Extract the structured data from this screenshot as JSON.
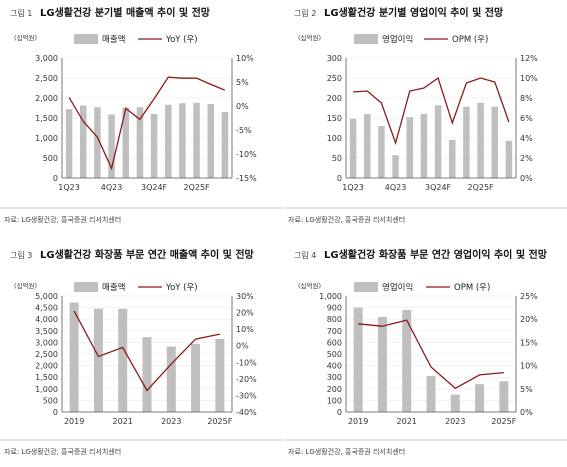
{
  "charts": [
    {
      "fig_no": "그림 1",
      "title": "LG생활건강 분기별 매출액 추이 및 전망",
      "unit": "(십억원)",
      "legend": {
        "bar": "매출액",
        "line": "YoY (우)"
      },
      "source": "자료: LG생활건강, 흥국증권 리서치센터",
      "x_tick_labels": [
        "1Q23",
        "4Q23",
        "3Q24F",
        "2Q25F"
      ]
    },
    {
      "fig_no": "그림 2",
      "title": "LG생활건강 분기별 영업이익 추이 및 전망",
      "unit": "(십억원)",
      "legend": {
        "bar": "영업이익",
        "line": "OPM (우)"
      },
      "source": "자료: LG생활건강, 흥국증권 리서치센터",
      "x_tick_labels": [
        "1Q23",
        "4Q23",
        "3Q24F",
        "2Q25F"
      ]
    },
    {
      "fig_no": "그림 3",
      "title": "LG생활건강 화장품 부문 연간 매출액 추이 및 전망",
      "unit": "(십억원)",
      "legend": {
        "bar": "매출액",
        "line": "YoY (우)"
      },
      "source": "자료: LG생활건강, 흥국증권 리서치센터",
      "x_tick_labels": [
        "2019",
        "2021",
        "2023",
        "2025F"
      ]
    },
    {
      "fig_no": "그림 4",
      "title": "LG생활건강 화장품 부문 연간 영업이익 추이 및 전망",
      "unit": "(십억원)",
      "legend": {
        "bar": "영업이익",
        "line": "OPM (우)"
      },
      "source": "자료: LG생활건강, 흥국증권 리서치센터",
      "x_tick_labels": [
        "2019",
        "2021",
        "2023",
        "2025F"
      ]
    }
  ],
  "chart_data": [
    {
      "type": "bar",
      "categories": [
        "1Q23",
        "2Q23",
        "3Q23",
        "4Q23",
        "1Q24",
        "2Q24",
        "3Q24F",
        "4Q24F",
        "1Q25F",
        "2Q25F",
        "3Q25F",
        "4Q25F"
      ],
      "series": [
        {
          "name": "매출액",
          "axis": "left",
          "type": "bar",
          "values": [
            1720,
            1810,
            1770,
            1590,
            1760,
            1770,
            1600,
            1830,
            1870,
            1880,
            1850,
            1650
          ]
        },
        {
          "name": "YoY (우)",
          "axis": "right",
          "type": "line",
          "values": [
            1.8,
            -3.2,
            -6.5,
            -13,
            -0.5,
            -2.8,
            1.5,
            6,
            5.8,
            5.8,
            4.5,
            3.3
          ]
        }
      ],
      "ylim_left": [
        0,
        3000
      ],
      "yticks_left": [
        0,
        500,
        1000,
        1500,
        2000,
        2500,
        3000
      ],
      "ylim_right": [
        -15,
        10
      ],
      "yticks_right": [
        -15,
        -10,
        -5,
        0,
        5,
        10
      ],
      "right_suffix": "%",
      "legend_position": "top-center"
    },
    {
      "type": "bar",
      "categories": [
        "1Q23",
        "2Q23",
        "3Q23",
        "4Q23",
        "1Q24",
        "2Q24",
        "3Q24F",
        "4Q24F",
        "1Q25F",
        "2Q25F",
        "3Q25F",
        "4Q25F"
      ],
      "series": [
        {
          "name": "영업이익",
          "axis": "left",
          "type": "bar",
          "values": [
            148,
            160,
            130,
            57,
            152,
            160,
            182,
            95,
            178,
            188,
            178,
            93
          ]
        },
        {
          "name": "OPM (우)",
          "axis": "right",
          "type": "line",
          "values": [
            8.6,
            8.7,
            7.5,
            3.5,
            8.7,
            9.0,
            10.0,
            5.5,
            9.5,
            10.0,
            9.6,
            5.6
          ]
        }
      ],
      "ylim_left": [
        0,
        300
      ],
      "yticks_left": [
        0,
        50,
        100,
        150,
        200,
        250,
        300
      ],
      "ylim_right": [
        0,
        12
      ],
      "yticks_right": [
        0,
        2,
        4,
        6,
        8,
        10,
        12
      ],
      "right_suffix": "%",
      "legend_position": "top-center"
    },
    {
      "type": "bar",
      "categories": [
        "2019",
        "2020",
        "2021",
        "2022",
        "2023",
        "2024F",
        "2025F"
      ],
      "series": [
        {
          "name": "매출액",
          "axis": "left",
          "type": "bar",
          "values": [
            4720,
            4450,
            4450,
            3230,
            2820,
            2940,
            3150
          ]
        },
        {
          "name": "YoY (우)",
          "axis": "right",
          "type": "line",
          "values": [
            21,
            -6.5,
            -1,
            -27,
            -11,
            4,
            7
          ]
        }
      ],
      "ylim_left": [
        0,
        5000
      ],
      "yticks_left": [
        0,
        500,
        1000,
        1500,
        2000,
        2500,
        3000,
        3500,
        4000,
        4500,
        5000
      ],
      "ylim_right": [
        -40,
        30
      ],
      "yticks_right": [
        -40,
        -30,
        -20,
        -10,
        0,
        10,
        20,
        30
      ],
      "right_suffix": "%",
      "legend_position": "top-center"
    },
    {
      "type": "bar",
      "categories": [
        "2019",
        "2020",
        "2021",
        "2022",
        "2023",
        "2024F",
        "2025F"
      ],
      "series": [
        {
          "name": "영업이익",
          "axis": "left",
          "type": "bar",
          "values": [
            900,
            820,
            880,
            310,
            150,
            240,
            265
          ]
        },
        {
          "name": "OPM (우)",
          "axis": "right",
          "type": "line",
          "values": [
            19,
            18.5,
            19.8,
            9.7,
            5.1,
            8,
            8.5
          ]
        }
      ],
      "ylim_left": [
        0,
        1000
      ],
      "yticks_left": [
        0,
        100,
        200,
        300,
        400,
        500,
        600,
        700,
        800,
        900,
        1000
      ],
      "ylim_right": [
        0,
        25
      ],
      "yticks_right": [
        0,
        5,
        10,
        15,
        20,
        25
      ],
      "right_suffix": "%",
      "legend_position": "top-center"
    }
  ],
  "colors": {
    "bar": "#bfbfbf",
    "line": "#8b1a1a"
  }
}
